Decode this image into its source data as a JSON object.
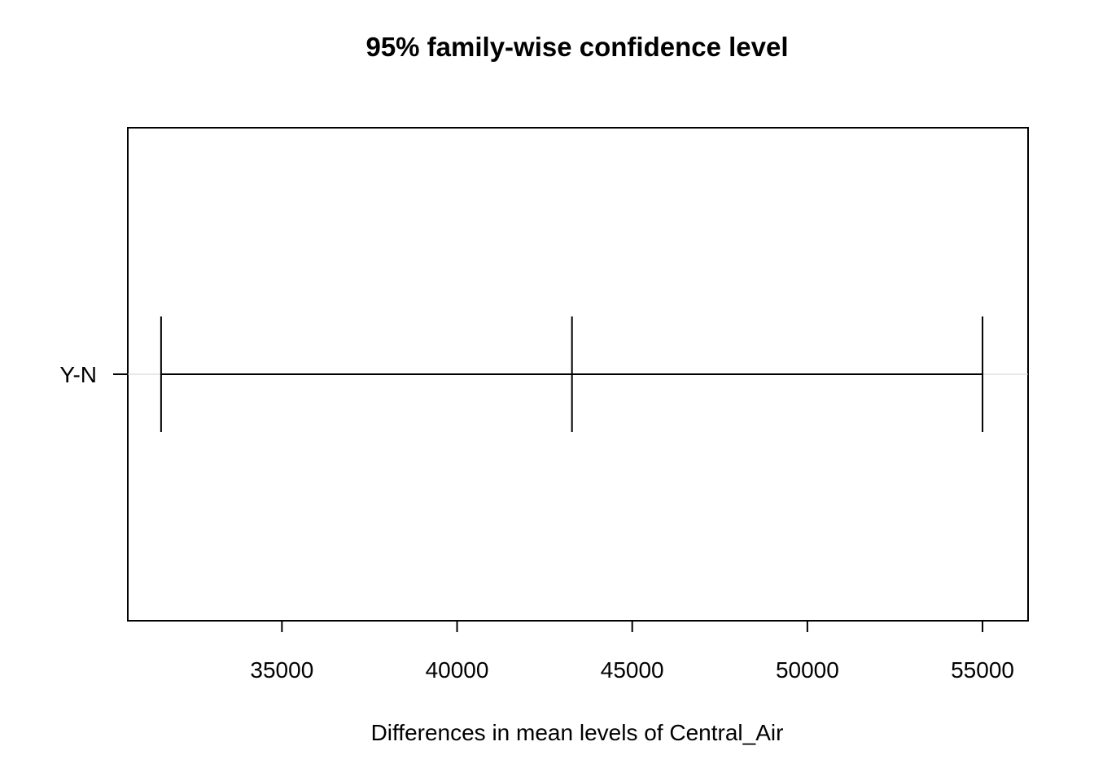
{
  "chart_data": {
    "type": "errorbar",
    "title": "95% family-wise confidence level",
    "xlabel": "Differences in mean levels of Central_Air",
    "ylabel": "",
    "xlim": [
      30600,
      56300
    ],
    "x_ticks": [
      35000,
      40000,
      45000,
      50000,
      55000
    ],
    "x_tick_labels": [
      "35000",
      "40000",
      "45000",
      "50000",
      "55000"
    ],
    "categories": [
      "Y-N"
    ],
    "intervals": [
      {
        "label": "Y-N",
        "lwr": 31550,
        "diff": 43280,
        "upr": 55000
      }
    ],
    "reference_line": {
      "x": 0,
      "visible": false
    },
    "grid": false,
    "legend": "none"
  },
  "colors": {
    "background": "#ffffff",
    "foreground": "#000000",
    "guide_line": "#d3d3d3"
  }
}
